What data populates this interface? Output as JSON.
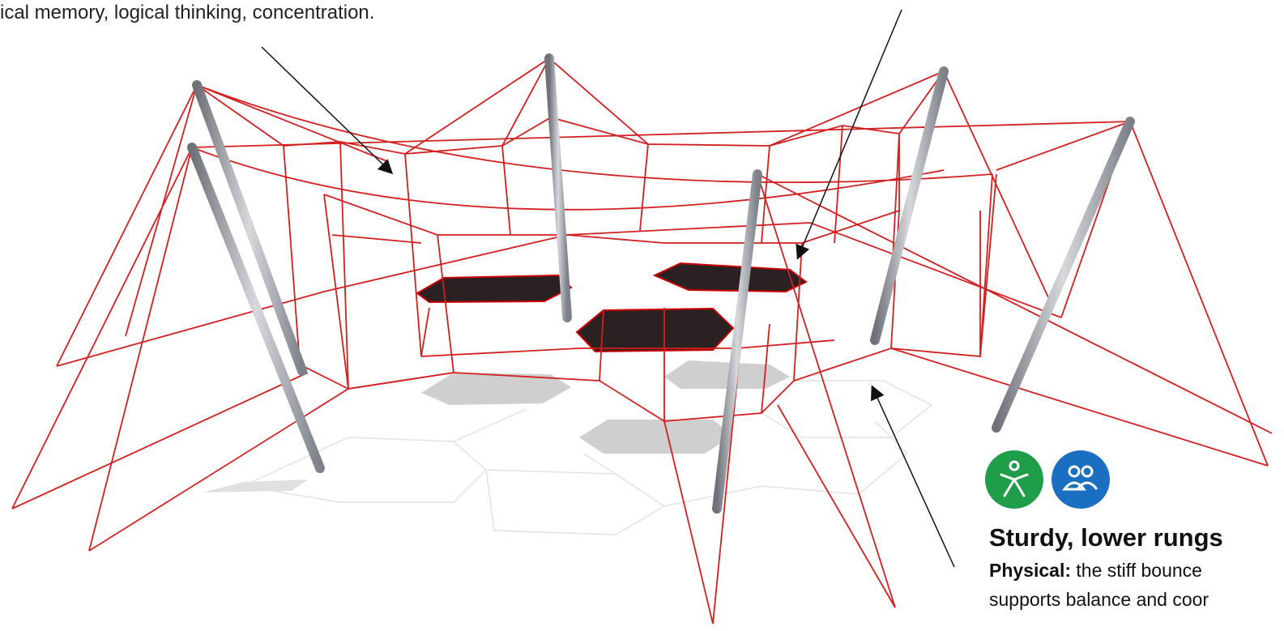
{
  "top_caption": "ical memory, logical thinking, concentration.",
  "callout": {
    "title": "Sturdy, lower rungs",
    "label": "Physical:",
    "lines": [
      "the stiff bounce",
      "supports balance and coor"
    ]
  }
}
